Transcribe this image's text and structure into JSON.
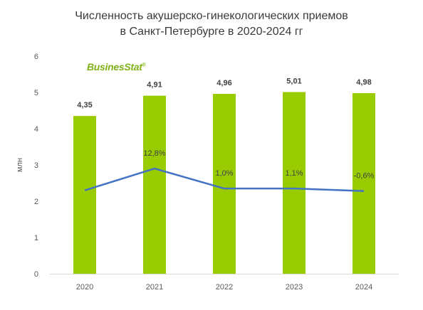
{
  "chart_data": {
    "type": "bar",
    "title_lines": [
      "Численность акушерско-гинекологических приемов",
      "в Санкт-Петербурге в 2020-2024 гг"
    ],
    "ylabel": "млн",
    "ylim": [
      0,
      6
    ],
    "yticks": [
      0,
      1,
      2,
      3,
      4,
      5,
      6
    ],
    "categories": [
      "2020",
      "2021",
      "2022",
      "2023",
      "2024"
    ],
    "series": [
      {
        "values": [
          4.35,
          4.91,
          4.96,
          5.01,
          4.98
        ],
        "labels": [
          "4,35",
          "4,91",
          "4,96",
          "5,01",
          "4,98"
        ],
        "color": "#99cc00"
      }
    ],
    "growth_line": {
      "values": [
        2.3,
        2.9,
        2.35,
        2.35,
        2.28
      ],
      "labels": [
        "",
        "12,8%",
        "1,0%",
        "1,1%",
        "-0,6%"
      ],
      "color": "#4472c4"
    },
    "grid": false,
    "legend": "none"
  },
  "logo": {
    "text": "BusinesStat",
    "mark": "®"
  }
}
